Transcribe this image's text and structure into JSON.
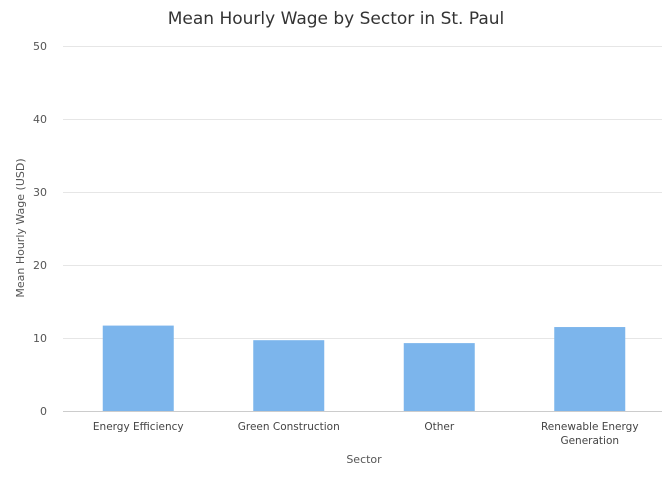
{
  "chart_data": {
    "type": "bar",
    "title": "Mean Hourly Wage by Sector in St. Paul",
    "xlabel": "Sector",
    "ylabel": "Mean Hourly Wage (USD)",
    "categories": [
      [
        "Energy Efficiency"
      ],
      [
        "Green Construction"
      ],
      [
        "Other"
      ],
      [
        "Renewable Energy",
        "Generation"
      ]
    ],
    "values": [
      11.7,
      9.7,
      9.3,
      11.5
    ],
    "ylim": [
      0,
      50
    ],
    "yticks": [
      0,
      10,
      20,
      30,
      40,
      50
    ],
    "grid": true,
    "bar_color": "#7cb5ec"
  }
}
